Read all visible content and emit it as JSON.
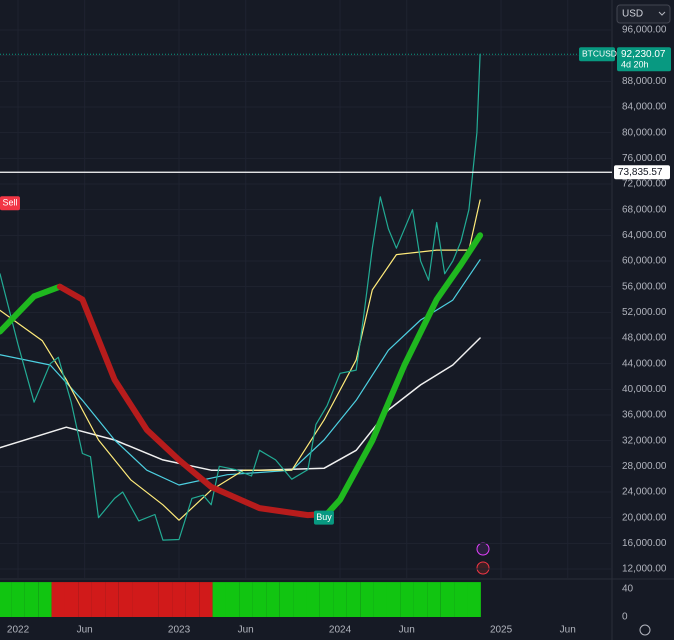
{
  "chart_data": [
    {
      "type": "line",
      "symbol": "BTCUSD",
      "currency": "USD",
      "countdown": "4d 20h",
      "last_price": {
        "value": 92230.07,
        "label": "92,230.07"
      },
      "last_price_color": "#089981",
      "level": {
        "value": 73835.57,
        "label": "73,835.57"
      },
      "signals": [
        {
          "label": "Sell",
          "x": 2021.95,
          "y": 69000,
          "color": "#f23645"
        },
        {
          "label": "Buy",
          "x": 2023.9,
          "y": 20000,
          "color": "#089981"
        }
      ],
      "xlim": [
        2021.888,
        2025.689
      ],
      "xticks": [
        2022,
        {
          "value": 2022.414,
          "label": "Jun"
        },
        2023,
        {
          "value": 2023.414,
          "label": "Jun"
        },
        2024,
        {
          "value": 2024.414,
          "label": "Jun"
        },
        2025,
        {
          "value": 2025.414,
          "label": "Jun"
        }
      ],
      "ylim": [
        10600,
        100675
      ],
      "yticks": [
        {
          "value": 12000,
          "label": "12,000.00"
        },
        {
          "value": 16000,
          "label": "16,000.00"
        },
        {
          "value": 20000,
          "label": "20,000.00"
        },
        {
          "value": 24000,
          "label": "24,000.00"
        },
        {
          "value": 28000,
          "label": "28,000.00"
        },
        {
          "value": 32000,
          "label": "32,000.00"
        },
        {
          "value": 36000,
          "label": "36,000.00"
        },
        {
          "value": 40000,
          "label": "40,000.00"
        },
        {
          "value": 44000,
          "label": "44,000.00"
        },
        {
          "value": 48000,
          "label": "48,000.00"
        },
        {
          "value": 52000,
          "label": "52,000.00"
        },
        {
          "value": 56000,
          "label": "56,000.00"
        },
        {
          "value": 60000,
          "label": "60,000.00"
        },
        {
          "value": 64000,
          "label": "64,000.00"
        },
        {
          "value": 68000,
          "label": "68,000.00"
        },
        {
          "value": 72000,
          "label": "72,000.00"
        },
        {
          "value": 76000,
          "label": "76,000.00"
        },
        {
          "value": 80000,
          "label": "80,000.00"
        },
        {
          "value": 84000,
          "label": "84,000.00"
        },
        {
          "value": 88000,
          "label": "88,000.00"
        },
        {
          "value": 92000,
          "label": "92,000.00"
        },
        {
          "value": 96000,
          "label": "96,000.00"
        }
      ],
      "grid": true,
      "series": [
        {
          "color": "#f0f0f0",
          "width": 1.5,
          "x": [
            2021.888,
            2022.3,
            2022.6,
            2022.9,
            2023.2,
            2023.5,
            2023.9,
            2024.1,
            2024.3,
            2024.5,
            2024.7,
            2024.87
          ],
          "values": [
            30900,
            34100,
            32100,
            29000,
            27400,
            27400,
            27700,
            30500,
            36800,
            40700,
            43800,
            48000
          ]
        },
        {
          "color": "#4dd0e1",
          "width": 1.2,
          "x": [
            2021.888,
            2022.2,
            2022.4,
            2022.6,
            2022.8,
            2023.0,
            2023.3,
            2023.7,
            2023.9,
            2024.1,
            2024.3,
            2024.5,
            2024.7,
            2024.87
          ],
          "values": [
            45400,
            43800,
            38300,
            32100,
            27400,
            25100,
            26700,
            27400,
            32100,
            38300,
            46100,
            50800,
            53900,
            60200
          ]
        },
        {
          "color": "#ffeb7a",
          "width": 1.2,
          "x": [
            2021.888,
            2022.15,
            2022.3,
            2022.5,
            2022.7,
            2022.9,
            2023.0,
            2023.2,
            2023.4,
            2023.7,
            2023.9,
            2024.1,
            2024.2,
            2024.35,
            2024.6,
            2024.8,
            2024.87
          ],
          "values": [
            52300,
            47600,
            41500,
            32100,
            25900,
            22000,
            19600,
            24300,
            27400,
            27400,
            35200,
            44600,
            55500,
            61000,
            61700,
            61700,
            69500
          ]
        },
        {
          "color": "#22ab94",
          "width": 1.2,
          "x": [
            2021.888,
            2022.0,
            2022.1,
            2022.2,
            2022.25,
            2022.33,
            2022.4,
            2022.45,
            2022.5,
            2022.6,
            2022.65,
            2022.75,
            2022.85,
            2022.9,
            2023.0,
            2023.08,
            2023.15,
            2023.2,
            2023.25,
            2023.35,
            2023.45,
            2023.5,
            2023.6,
            2023.7,
            2023.8,
            2023.85,
            2023.92,
            2024.0,
            2024.1,
            2024.15,
            2024.2,
            2024.25,
            2024.3,
            2024.35,
            2024.45,
            2024.5,
            2024.55,
            2024.6,
            2024.65,
            2024.7,
            2024.75,
            2024.8,
            2024.85,
            2024.87
          ],
          "values": [
            58000,
            47000,
            38000,
            44000,
            45000,
            38000,
            30000,
            29500,
            20000,
            23000,
            24000,
            19500,
            20500,
            16500,
            16600,
            23000,
            23500,
            22000,
            28000,
            27500,
            26500,
            30500,
            29000,
            26000,
            27500,
            34500,
            37500,
            42500,
            43000,
            52000,
            62000,
            70000,
            65000,
            62000,
            68000,
            60000,
            57000,
            66000,
            58000,
            60000,
            63000,
            68000,
            80000,
            92230
          ]
        },
        {
          "color": "#1fb81f",
          "width": 6,
          "x": [
            2021.888,
            2022.1,
            2022.26
          ],
          "values": [
            49000,
            54500,
            56000
          ]
        },
        {
          "color": "#b71c1c",
          "width": 6,
          "x": [
            2022.26,
            2022.4,
            2022.6,
            2022.8,
            2023.0,
            2023.2,
            2023.5,
            2023.8,
            2023.92
          ],
          "values": [
            56000,
            54000,
            41500,
            33700,
            29000,
            24800,
            21500,
            20400,
            20600
          ]
        },
        {
          "color": "#1fb81f",
          "width": 6,
          "x": [
            2023.92,
            2024.0,
            2024.2,
            2024.4,
            2024.6,
            2024.75,
            2024.87
          ],
          "values": [
            20600,
            22800,
            32000,
            43800,
            54000,
            59400,
            64000
          ]
        }
      ]
    },
    {
      "type": "bar",
      "ylim": [
        0,
        53
      ],
      "yticks": [
        0,
        40
      ],
      "x": [
        2021.917,
        2022.0,
        2022.083,
        2022.167,
        2022.25,
        2022.333,
        2022.417,
        2022.5,
        2022.583,
        2022.667,
        2022.75,
        2022.833,
        2022.917,
        2023.0,
        2023.083,
        2023.167,
        2023.25,
        2023.333,
        2023.417,
        2023.5,
        2023.583,
        2023.667,
        2023.75,
        2023.833,
        2023.917,
        2024.0,
        2024.083,
        2024.167,
        2024.25,
        2024.333,
        2024.417,
        2024.5,
        2024.583,
        2024.667,
        2024.75,
        2024.833
      ],
      "values": [
        50,
        50,
        50,
        50,
        50,
        50,
        50,
        50,
        50,
        50,
        50,
        50,
        50,
        50,
        50,
        50,
        50,
        50,
        50,
        50,
        50,
        50,
        50,
        50,
        50,
        50,
        50,
        50,
        50,
        50,
        50,
        50,
        50,
        50,
        50,
        50
      ],
      "colors": [
        "#11c511",
        "#11c511",
        "#11c511",
        "#11c511",
        "#d11a1a",
        "#d11a1a",
        "#d11a1a",
        "#d11a1a",
        "#d11a1a",
        "#d11a1a",
        "#d11a1a",
        "#d11a1a",
        "#d11a1a",
        "#d11a1a",
        "#d11a1a",
        "#d11a1a",
        "#11c511",
        "#11c511",
        "#11c511",
        "#11c511",
        "#11c511",
        "#11c511",
        "#11c511",
        "#11c511",
        "#11c511",
        "#11c511",
        "#11c511",
        "#11c511",
        "#11c511",
        "#11c511",
        "#11c511",
        "#11c511",
        "#11c511",
        "#11c511",
        "#11c511",
        "#11c511"
      ]
    }
  ]
}
